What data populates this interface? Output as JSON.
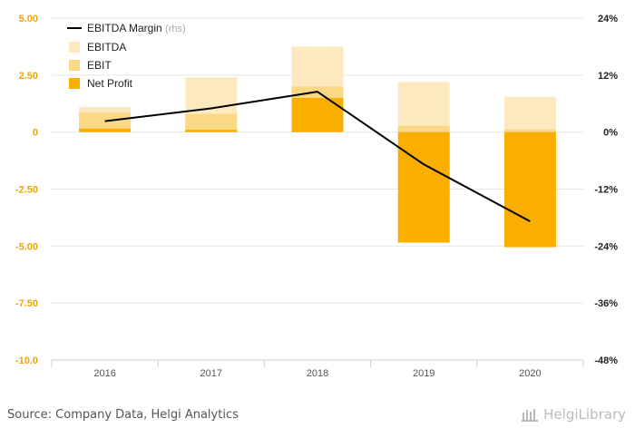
{
  "chart_data": {
    "type": "bar",
    "categories": [
      "2016",
      "2017",
      "2018",
      "2019",
      "2020"
    ],
    "series": [
      {
        "name": "EBITDA",
        "values": [
          1.1,
          2.4,
          3.75,
          2.2,
          1.55
        ],
        "color": "#fde9bf"
      },
      {
        "name": "EBIT",
        "values": [
          0.85,
          0.8,
          2.0,
          0.28,
          0.12
        ],
        "color": "#fbd884"
      },
      {
        "name": "Net Profit",
        "values": [
          0.15,
          0.1,
          1.5,
          -4.85,
          -5.05
        ],
        "color": "#f9ae00"
      }
    ],
    "line_series": {
      "name": "EBITDA Margin",
      "name_suffix": "(rhs)",
      "values": [
        2.3,
        5.0,
        8.5,
        -6.8,
        -18.8
      ],
      "color": "#000000",
      "axis": "right"
    },
    "ylim_left": [
      -10,
      5
    ],
    "ylim_right": [
      -48,
      24
    ],
    "left_ticks": [
      "-10.0",
      "-7.50",
      "-5.00",
      "-2.50",
      "0",
      "2.50",
      "5.00"
    ],
    "right_ticks": [
      "-48%",
      "-36%",
      "-24%",
      "-12%",
      "0%",
      "12%",
      "24%"
    ],
    "grid": true,
    "legend_position": "top-left",
    "left_axis_color": "#f0a500",
    "right_axis_color": "#222222"
  },
  "source_text": "Source: Company Data, Helgi Analytics",
  "logo_text": "HelgiLibrary"
}
